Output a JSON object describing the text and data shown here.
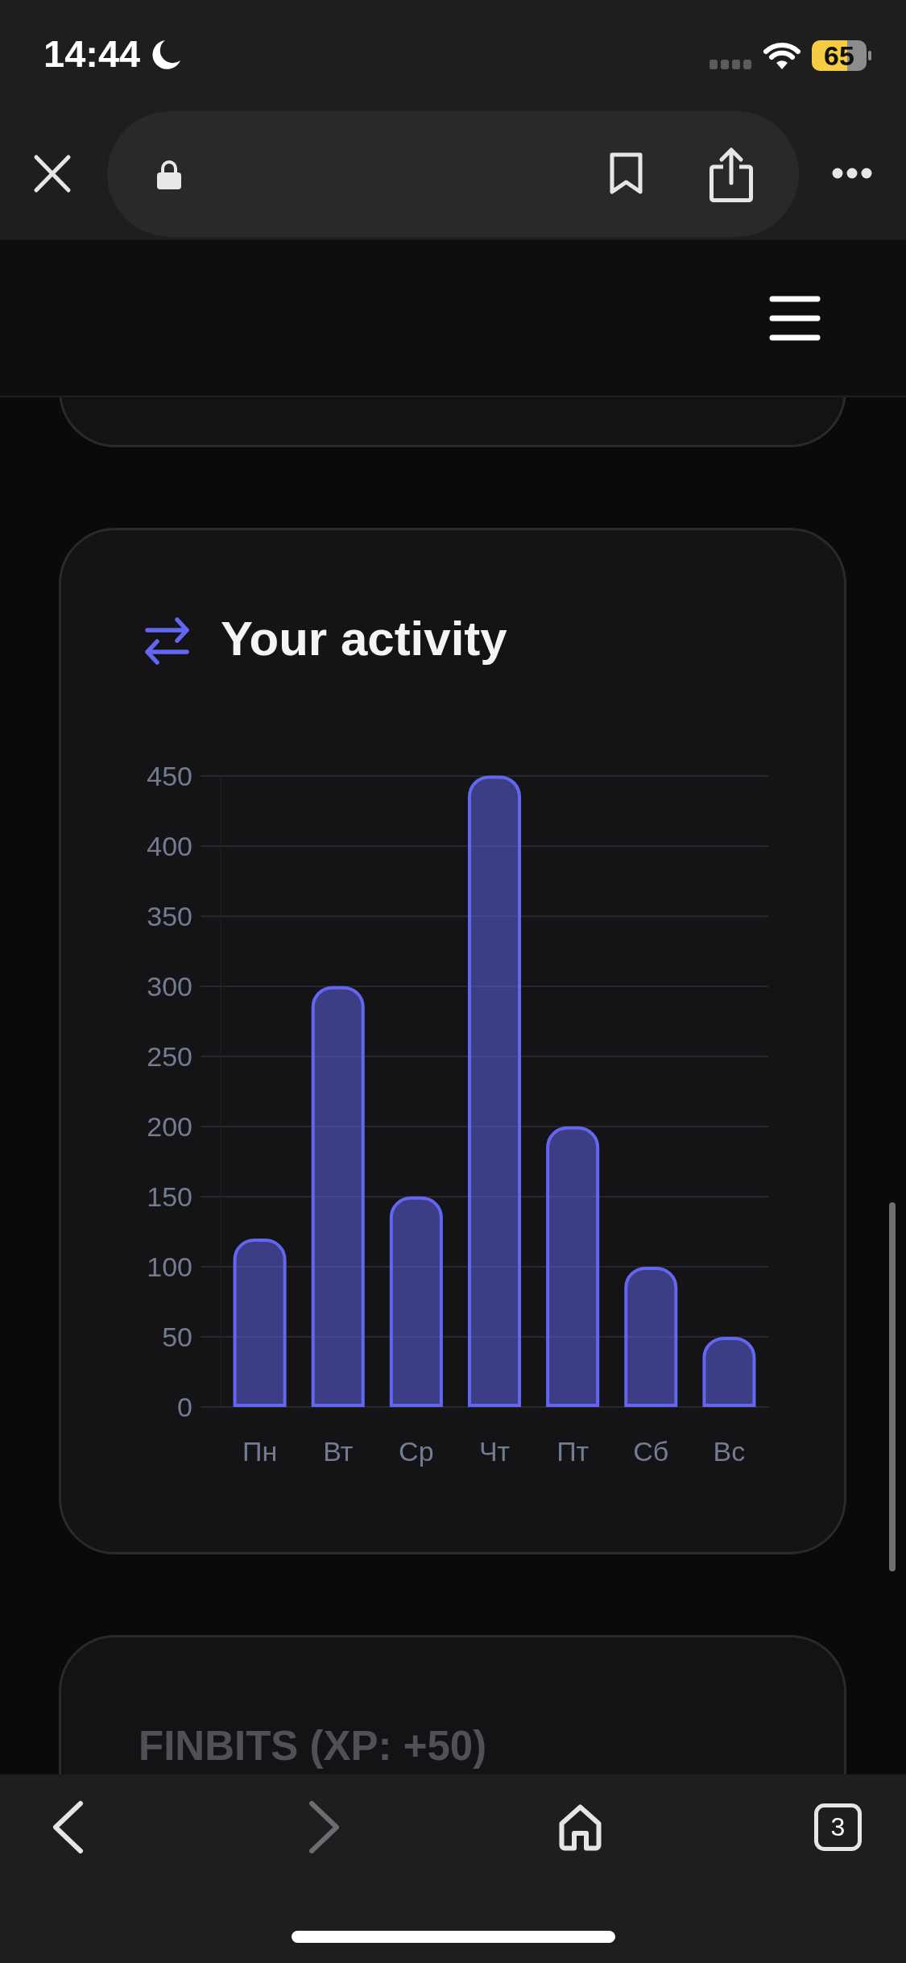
{
  "chart_data": {
    "type": "bar",
    "title": "Your activity",
    "categories": [
      "Пн",
      "Вт",
      "Ср",
      "Чт",
      "Пт",
      "Сб",
      "Вс"
    ],
    "values": [
      120,
      300,
      150,
      450,
      200,
      100,
      50
    ],
    "color": "#6366f1",
    "ylim": [
      0,
      450
    ],
    "yticks": [
      0,
      50,
      100,
      150,
      200,
      250,
      300,
      350,
      400,
      450
    ],
    "grid": "y",
    "annotations": [
      "14:44",
      "65",
      "FINBITS (XP: +50)",
      "3"
    ]
  }
}
